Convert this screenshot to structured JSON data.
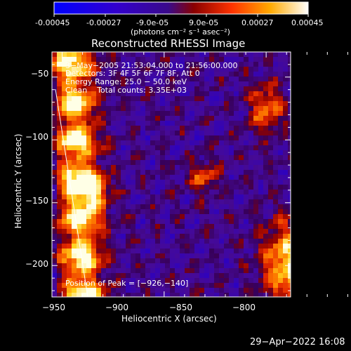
{
  "colorbar": {
    "ticks": [
      "-0.00045",
      "-0.00027",
      "-9.0e-05",
      "9.0e-05",
      "0.00027",
      "0.00045"
    ],
    "units": "(photons cm⁻² s⁻¹ asec⁻²)"
  },
  "chart_data": {
    "type": "heatmap",
    "title": "Reconstructed RHESSI Image",
    "xlabel": "Heliocentric X (arcsec)",
    "ylabel": "Heliocentric Y (arcsec)",
    "xlim": [
      -955,
      -838
    ],
    "ylim": [
      -225,
      -30
    ],
    "x_ticks": [
      "−950",
      "−900",
      "−850",
      "−800"
    ],
    "y_ticks": [
      "−50",
      "−100",
      "−150",
      "−200"
    ],
    "annotations": [
      "3−May−2005 21:53:04.000 to 21:56:00.000",
      "Detectors: 3F 4F 5F 6F 7F 8F, Att 0",
      "Energy Range: 25.0 − 50.0 keV",
      "Clean    Total counts: 3.35E+03"
    ],
    "peak_label": "Position of Peak = [−926,−140]",
    "peak": [
      -926,
      -140
    ]
  },
  "footer": {
    "timestamp": "29−Apr−2022 16:08"
  }
}
